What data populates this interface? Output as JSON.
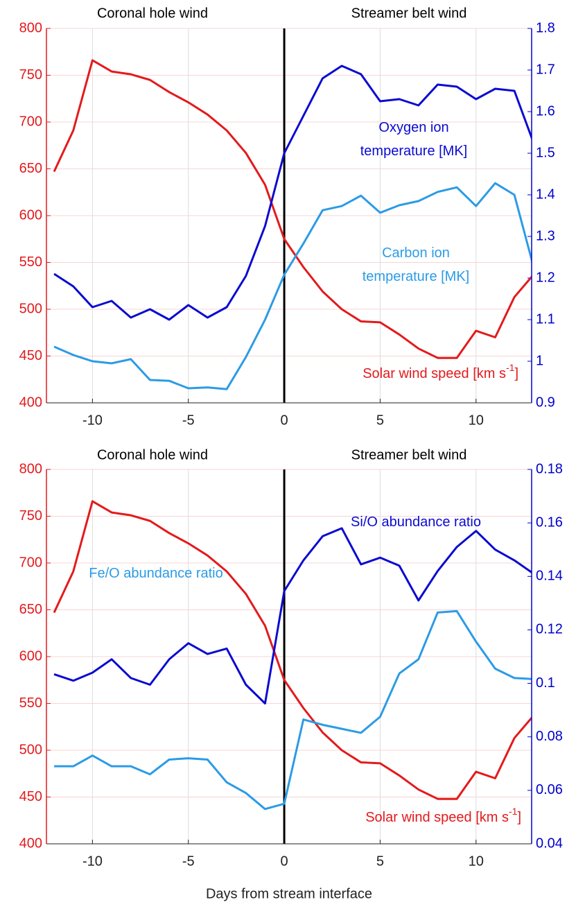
{
  "chart_data": [
    {
      "type": "line",
      "headers": [
        "Coronal hole wind",
        "Streamer belt wind"
      ],
      "x": [
        -12,
        -11,
        -10,
        -9,
        -8,
        -7,
        -6,
        -5,
        -4,
        -3,
        -2,
        -1,
        0,
        1,
        2,
        3,
        4,
        5,
        6,
        7,
        8,
        9,
        10,
        11,
        12,
        13
      ],
      "xlim": [
        -12.4,
        12.9
      ],
      "xticks": [
        -10,
        -5,
        0,
        5,
        10
      ],
      "ylim": [
        400,
        800
      ],
      "yticks": [
        400,
        450,
        500,
        550,
        600,
        650,
        700,
        750,
        800
      ],
      "y2lim": [
        0.9,
        1.8
      ],
      "y2ticks": [
        0.9,
        1,
        1.1,
        1.2,
        1.3,
        1.4,
        1.5,
        1.6,
        1.7,
        1.8
      ],
      "ycolor": "#e31a1c",
      "y2color": "#0000cc",
      "grid": true,
      "vline": 0,
      "series": [
        {
          "color": "#e31a1c",
          "values": [
            647,
            691,
            766,
            754,
            751,
            745,
            732,
            721,
            708,
            691,
            667,
            633,
            575,
            545,
            519,
            500,
            487,
            486,
            473,
            458,
            448,
            448,
            477,
            470,
            513,
            537
          ]
        },
        {
          "color": "#0a0ad2",
          "axis": "y2",
          "values": [
            1.21,
            1.18,
            1.13,
            1.145,
            1.105,
            1.125,
            1.1,
            1.135,
            1.105,
            1.13,
            1.205,
            1.325,
            1.5,
            1.59,
            1.68,
            1.71,
            1.69,
            1.625,
            1.63,
            1.615,
            1.665,
            1.66,
            1.63,
            1.655,
            1.65,
            1.525
          ]
        },
        {
          "color": "#2b9be6",
          "axis": "y2",
          "values": [
            1.035,
            1.015,
            1.0,
            0.995,
            1.005,
            0.955,
            0.953,
            0.935,
            0.937,
            0.933,
            1.01,
            1.1,
            1.208,
            1.283,
            1.363,
            1.373,
            1.398,
            1.357,
            1.375,
            1.385,
            1.407,
            1.418,
            1.373,
            1.428,
            1.4,
            1.227
          ]
        }
      ],
      "annotations": [
        {
          "lines": [
            "Oxygen ion",
            "temperature [MK]"
          ],
          "color": "#0a0ad2"
        },
        {
          "lines": [
            "Carbon ion",
            "temperature [MK]"
          ],
          "color": "#2b9be6"
        },
        {
          "lines": [
            "Solar wind speed [km s"
          ],
          "sup": "-1",
          "end": "]",
          "color": "#e31a1c"
        }
      ]
    },
    {
      "type": "line",
      "headers": [
        "Coronal hole wind",
        "Streamer belt wind"
      ],
      "x": [
        -12,
        -11,
        -10,
        -9,
        -8,
        -7,
        -6,
        -5,
        -4,
        -3,
        -2,
        -1,
        0,
        1,
        2,
        3,
        4,
        5,
        6,
        7,
        8,
        9,
        10,
        11,
        12,
        13
      ],
      "xlim": [
        -12.4,
        12.9
      ],
      "xticks": [
        -10,
        -5,
        0,
        5,
        10
      ],
      "xlabel": "Days from stream interface",
      "ylim": [
        400,
        800
      ],
      "yticks": [
        400,
        450,
        500,
        550,
        600,
        650,
        700,
        750,
        800
      ],
      "y2lim": [
        0.04,
        0.18
      ],
      "y2ticks": [
        0.04,
        0.06,
        0.08,
        0.1,
        0.12,
        0.14,
        0.16,
        0.18
      ],
      "ycolor": "#e31a1c",
      "y2color": "#0000cc",
      "grid": true,
      "vline": 0,
      "series": [
        {
          "color": "#e31a1c",
          "values": [
            647,
            691,
            766,
            754,
            751,
            745,
            732,
            721,
            708,
            691,
            667,
            633,
            575,
            545,
            519,
            500,
            487,
            486,
            473,
            458,
            448,
            448,
            477,
            470,
            513,
            537
          ]
        },
        {
          "color": "#0a0ad2",
          "axis": "y2",
          "values": [
            0.1034,
            0.101,
            0.104,
            0.109,
            0.102,
            0.0995,
            0.109,
            0.115,
            0.111,
            0.113,
            0.0995,
            0.0925,
            0.1345,
            0.146,
            0.155,
            0.158,
            0.1445,
            0.147,
            0.144,
            0.131,
            0.142,
            0.151,
            0.157,
            0.15,
            0.146,
            0.141
          ]
        },
        {
          "color": "#2b9be6",
          "axis": "y2",
          "values": [
            0.069,
            0.069,
            0.073,
            0.069,
            0.069,
            0.066,
            0.0715,
            0.072,
            0.0715,
            0.063,
            0.059,
            0.053,
            0.055,
            0.0865,
            0.0845,
            0.083,
            0.0815,
            0.0875,
            0.1037,
            0.109,
            0.1265,
            0.127,
            0.1156,
            0.1055,
            0.102,
            0.1016
          ]
        }
      ],
      "annotations": [
        {
          "lines": [
            "Si/O abundance ratio"
          ],
          "color": "#0a0ad2"
        },
        {
          "lines": [
            "Fe/O abundance ratio"
          ],
          "color": "#2b9be6"
        },
        {
          "lines": [
            "Solar wind speed [km s"
          ],
          "sup": "-1",
          "end": "]",
          "color": "#e31a1c"
        }
      ]
    }
  ]
}
